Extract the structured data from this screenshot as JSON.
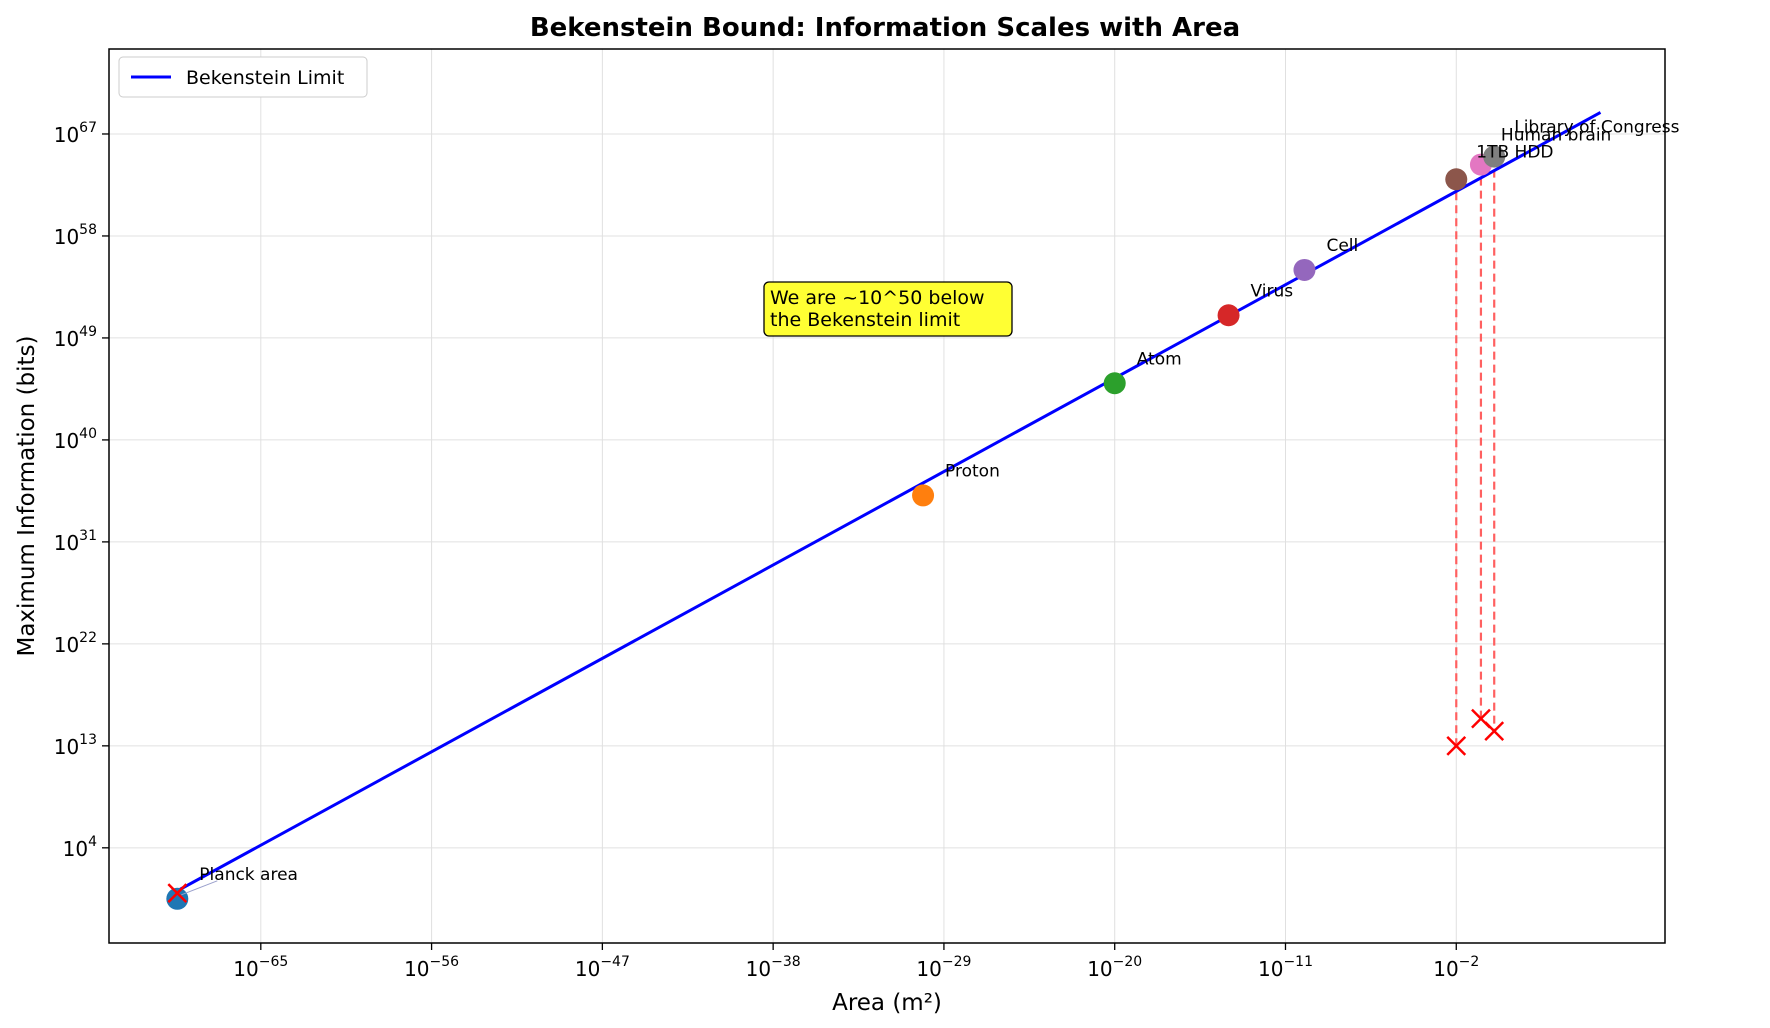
{
  "chart_data": {
    "type": "line",
    "title": "Bekenstein Bound: Information Scales with Area",
    "xlabel": "Area (m²)",
    "ylabel": "Maximum Information (bits)",
    "x_scale": "log",
    "y_scale": "log",
    "xlim_log10": [
      -73,
      9
    ],
    "ylim_log10": [
      -4.4,
      74.5
    ],
    "grid": true,
    "legend_position": "top-left",
    "x_ticks": [
      {
        "base": "10",
        "exp": "−65",
        "value_log10": -65
      },
      {
        "base": "10",
        "exp": "−56",
        "value_log10": -56
      },
      {
        "base": "10",
        "exp": "−47",
        "value_log10": -47
      },
      {
        "base": "10",
        "exp": "−38",
        "value_log10": -38
      },
      {
        "base": "10",
        "exp": "−29",
        "value_log10": -29
      },
      {
        "base": "10",
        "exp": "−20",
        "value_log10": -20
      },
      {
        "base": "10",
        "exp": "−11",
        "value_log10": -11
      },
      {
        "base": "10",
        "exp": "−2",
        "value_log10": -2
      }
    ],
    "y_ticks": [
      {
        "base": "10",
        "exp": "4",
        "value_log10": 4
      },
      {
        "base": "10",
        "exp": "13",
        "value_log10": 13
      },
      {
        "base": "10",
        "exp": "22",
        "value_log10": 22
      },
      {
        "base": "10",
        "exp": "31",
        "value_log10": 31
      },
      {
        "base": "10",
        "exp": "40",
        "value_log10": 40
      },
      {
        "base": "10",
        "exp": "49",
        "value_log10": 49
      },
      {
        "base": "10",
        "exp": "58",
        "value_log10": 58
      },
      {
        "base": "10",
        "exp": "67",
        "value_log10": 67
      }
    ],
    "series": [
      {
        "name": "Bekenstein Limit",
        "color": "#0000ff",
        "x_log10": [
          -69.4,
          5.6
        ],
        "y_log10": [
          0.2,
          68.9
        ]
      }
    ],
    "points": [
      {
        "label": "Planck area",
        "x_log10": -69.4,
        "y_log10": -0.5,
        "color": "#1f77b4"
      },
      {
        "label": "Proton",
        "x_log10": -30.1,
        "y_log10": 35.1,
        "color": "#ff7f0e"
      },
      {
        "label": "Atom",
        "x_log10": -20.0,
        "y_log10": 45.0,
        "color": "#2ca02c"
      },
      {
        "label": "Virus",
        "x_log10": -14.0,
        "y_log10": 51.0,
        "color": "#d62728"
      },
      {
        "label": "Cell",
        "x_log10": -10.0,
        "y_log10": 55.0,
        "color": "#9467bd"
      },
      {
        "label": "1TB HDD",
        "x_log10": -2.0,
        "y_log10": 63.0,
        "color": "#8c564b"
      },
      {
        "label": "Human brain",
        "x_log10": -0.7,
        "y_log10": 64.3,
        "color": "#e377c2"
      },
      {
        "label": "Library of Congress",
        "x_log10": 0.0,
        "y_log10": 65.0,
        "color": "#7f7f7f"
      }
    ],
    "actual_info": [
      {
        "x_log10": -69.4,
        "y_log10": 0.0
      },
      {
        "x_log10": -2.0,
        "y_log10": 13.0
      },
      {
        "x_log10": -0.7,
        "y_log10": 15.4
      },
      {
        "x_log10": 0.0,
        "y_log10": 14.3
      }
    ],
    "annotation": "We are ~10^50 below\nthe Bekenstein limit",
    "colors": {
      "line": "#0000ff",
      "marker_x": "#ff0000",
      "dashed": "#ff6060",
      "annotation_bg": "#ffff33",
      "grid": "#e0e0e0"
    }
  }
}
